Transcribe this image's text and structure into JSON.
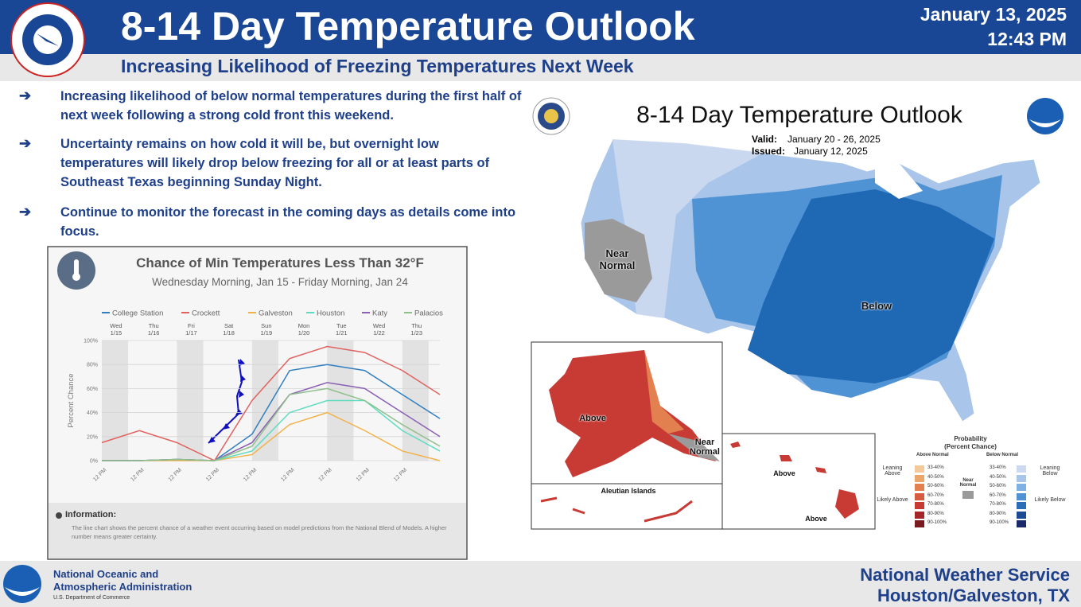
{
  "header": {
    "title": "8-14 Day Temperature Outlook",
    "subtitle": "Increasing Likelihood of Freezing Temperatures Next Week",
    "date": "January 13, 2025",
    "time": "12:43 PM"
  },
  "bullets": [
    "Increasing likelihood of below normal temperatures during the first half of next week following a strong cold front this weekend.",
    "Uncertainty remains on how cold it will be, but overnight low temperatures will likely drop below freezing for all or at least parts of Southeast Texas beginning Sunday Night.",
    "Continue to monitor the forecast in the coming days as details come into focus."
  ],
  "chart_data": {
    "type": "line",
    "title": "Chance of Min Temperatures Less Than 32°F",
    "subtitle": "Wednesday Morning, Jan 15 - Friday Morning, Jan 24",
    "y_label": "Percent Chance",
    "days": [
      {
        "day": "Wed",
        "date": "1/15"
      },
      {
        "day": "Thu",
        "date": "1/16"
      },
      {
        "day": "Fri",
        "date": "1/17"
      },
      {
        "day": "Sat",
        "date": "1/18"
      },
      {
        "day": "Sun",
        "date": "1/19"
      },
      {
        "day": "Mon",
        "date": "1/20"
      },
      {
        "day": "Tue",
        "date": "1/21"
      },
      {
        "day": "Wed",
        "date": "1/22"
      },
      {
        "day": "Thu",
        "date": "1/23"
      }
    ],
    "categories": [
      "12 PM",
      "12 PM",
      "12 PM",
      "12 PM",
      "12 PM",
      "12 PM",
      "12 PM",
      "12 PM",
      "12 PM",
      null
    ],
    "series": [
      {
        "name": "College Station",
        "color": "#2f7fc1",
        "values": [
          0,
          0,
          1,
          0,
          22,
          75,
          80,
          75,
          55,
          35
        ]
      },
      {
        "name": "Crockett",
        "color": "#e0625e",
        "values": [
          15,
          25,
          15,
          0,
          50,
          85,
          95,
          90,
          75,
          55
        ]
      },
      {
        "name": "Galveston",
        "color": "#f2b24a",
        "values": [
          0,
          0,
          0,
          0,
          5,
          30,
          40,
          25,
          8,
          0
        ]
      },
      {
        "name": "Houston",
        "color": "#5fdcc0",
        "values": [
          0,
          0,
          1,
          0,
          8,
          40,
          50,
          50,
          25,
          8
        ]
      },
      {
        "name": "Katy",
        "color": "#8a5fb5",
        "values": [
          0,
          0,
          1,
          0,
          15,
          55,
          65,
          60,
          40,
          20
        ]
      },
      {
        "name": "Palacios",
        "color": "#8fbf8a",
        "values": [
          0,
          0,
          1,
          0,
          12,
          55,
          60,
          50,
          30,
          12
        ]
      }
    ],
    "ylim": [
      0,
      100
    ],
    "yticks": [
      {
        "value": 0,
        "label": "0%"
      },
      {
        "value": 20,
        "label": "20%"
      },
      {
        "value": 40,
        "label": "40%"
      },
      {
        "value": 60,
        "label": "60%"
      },
      {
        "value": 80,
        "label": "80%"
      },
      {
        "value": 100,
        "label": "100%"
      }
    ],
    "info_title": "Information:",
    "info_text": "The line chart shows the percent chance of a weather event occurring based on model predictions from the National Blend of Models. A higher number means greater certainty."
  },
  "map": {
    "title": "8-14 Day Temperature Outlook",
    "valid_label": "Valid:",
    "valid": "January 20 - 26, 2025",
    "issued_label": "Issued:",
    "issued": "January 12, 2025",
    "conus_near": "Near Normal",
    "conus_below": "Below",
    "alaska_above": "Above",
    "alaska_near": "Near Normal",
    "aleutian": "Aleutian Islands",
    "hawaii_above_1": "Above",
    "hawaii_above_2": "Above",
    "legend": {
      "title": "Probability",
      "subtitle": "(Percent Chance)",
      "above_header": "Above Normal",
      "below_header": "Below Normal",
      "near": "Near Normal",
      "leaning_above": "Leaning Above",
      "likely_above": "Likely Above",
      "leaning_below": "Leaning Below",
      "likely_below": "Likely Below",
      "ranges": [
        "33-40%",
        "40-50%",
        "50-60%",
        "60-70%",
        "70-80%",
        "80-90%",
        "90-100%"
      ],
      "above_colors": [
        "#f3c89a",
        "#eda66a",
        "#e3804f",
        "#d85a3f",
        "#c83b35",
        "#a5262a",
        "#7a1a1f"
      ],
      "below_colors": [
        "#cdd9f0",
        "#a9c6ea",
        "#7fb1e3",
        "#4f93d4",
        "#2c6db8",
        "#1d4b93",
        "#1a2a6a"
      ]
    }
  },
  "footer": {
    "org1": "National Oceanic and",
    "org2": "Atmospheric Administration",
    "dept": "U.S. Department of Commerce",
    "nws": "National Weather Service",
    "office": "Houston/Galveston, TX"
  }
}
